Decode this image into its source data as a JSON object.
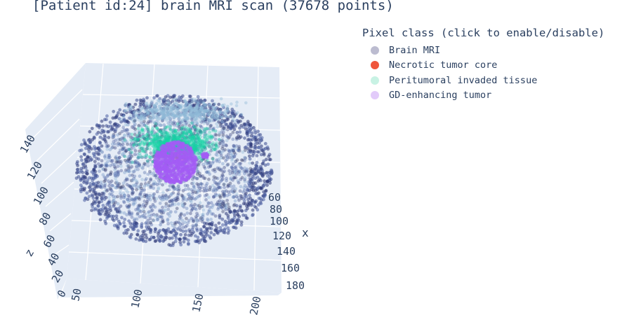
{
  "chart_data": {
    "type": "scatter",
    "title": "[Patient id:24] brain MRI scan (37678 points)",
    "legend_title": "Pixel class (click to enable/disable)",
    "legend_position": "top-right",
    "axes": {
      "x": {
        "label": "x",
        "ticks": [
          "60",
          "80",
          "100",
          "120",
          "140",
          "160",
          "180"
        ]
      },
      "y": {
        "label": "",
        "ticks": [
          "50",
          "100",
          "150",
          "200"
        ]
      },
      "z": {
        "label": "z",
        "ticks": [
          "0",
          "20",
          "40",
          "60",
          "80",
          "100",
          "120",
          "140"
        ]
      }
    },
    "series": [
      {
        "name": "Brain MRI",
        "color": "#bcbcd0"
      },
      {
        "name": "Necrotic tumor core",
        "color": "#ef553b"
      },
      {
        "name": "Peritumoral invaded tissue",
        "color": "#c8f2e4"
      },
      {
        "name": "GD-enhancing tumor",
        "color": "#e2cbfa"
      }
    ]
  }
}
